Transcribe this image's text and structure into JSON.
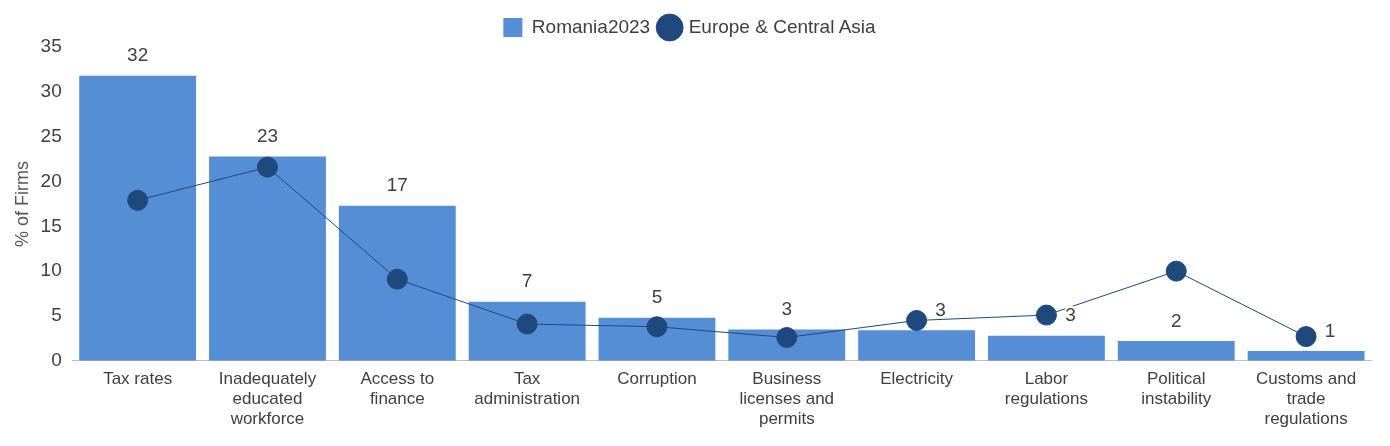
{
  "chart_data": {
    "type": "bar",
    "ylabel": "% of Firms",
    "categories": [
      "Tax rates",
      "Inadequately educated workforce",
      "Access to finance",
      "Tax administration",
      "Corruption",
      "Business licenses and permits",
      "Electricity",
      "Labor regulations",
      "Political instability",
      "Customs and trade regulations"
    ],
    "series": [
      {
        "name": "Romania2023",
        "color": "#558ed5",
        "values": [
          31.8,
          22.8,
          17.3,
          6.6,
          4.8,
          3.5,
          3.4,
          2.8,
          2.2,
          1.1
        ],
        "value_labels": [
          "32",
          "23",
          "17",
          "7",
          "5",
          "3",
          "3",
          "3",
          "2",
          "1"
        ]
      },
      {
        "name": "Europe & Central Asia",
        "type": "line",
        "color": "#1f497d",
        "values": [
          17.9,
          21.6,
          9.1,
          4.1,
          3.8,
          2.6,
          4.5,
          5.1,
          10.0,
          2.7
        ],
        "marker": "circle"
      }
    ],
    "ylim": [
      0,
      35
    ],
    "yticks": [
      0,
      5,
      10,
      15,
      20,
      25,
      30,
      35
    ],
    "grid": false,
    "legend": "top"
  }
}
